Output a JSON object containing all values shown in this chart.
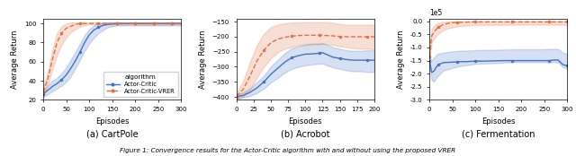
{
  "fig_width": 6.4,
  "fig_height": 1.74,
  "dpi": 100,
  "cartpole": {
    "xlim": [
      0,
      300
    ],
    "ylim": [
      20,
      105
    ],
    "xticks": [
      0,
      50,
      100,
      150,
      200,
      250,
      300
    ],
    "yticks": [
      20,
      40,
      60,
      80,
      100
    ],
    "xlabel": "Episodes",
    "ylabel": "Average Return",
    "title": "(a) CartPole",
    "ac_x": [
      0,
      10,
      20,
      30,
      40,
      50,
      60,
      70,
      80,
      90,
      100,
      110,
      120,
      130,
      140,
      150,
      160,
      170,
      180,
      190,
      200,
      210,
      220,
      230,
      240,
      250,
      260,
      270,
      280,
      290,
      300
    ],
    "ac_y": [
      26,
      30,
      34,
      37,
      41,
      46,
      53,
      61,
      70,
      80,
      88,
      93,
      96,
      98,
      99,
      99.5,
      100,
      100,
      100,
      100,
      100,
      100,
      100,
      100,
      100,
      100,
      100,
      100,
      100,
      100,
      100
    ],
    "ac_ylow": [
      23,
      26,
      29,
      32,
      35,
      39,
      45,
      53,
      62,
      71,
      79,
      85,
      90,
      93,
      96,
      97,
      98,
      98,
      98,
      98,
      98,
      98,
      98,
      98,
      98,
      98,
      98,
      98,
      98,
      98,
      98
    ],
    "ac_yhigh": [
      30,
      35,
      40,
      43,
      48,
      54,
      62,
      70,
      79,
      88,
      94,
      98,
      100,
      101,
      101,
      101,
      101,
      101,
      101,
      101,
      101,
      101,
      101,
      101,
      101,
      101,
      101,
      101,
      101,
      101,
      101
    ],
    "vrer_x": [
      0,
      10,
      20,
      30,
      40,
      50,
      60,
      70,
      80,
      90,
      100,
      110,
      120,
      130,
      140,
      150,
      160,
      170,
      180,
      190,
      200,
      210,
      220,
      230,
      240,
      250,
      260,
      270,
      280,
      290,
      300
    ],
    "vrer_y": [
      28,
      42,
      62,
      80,
      90,
      95,
      97,
      99,
      100,
      100,
      100,
      100,
      100,
      100,
      100,
      100,
      100,
      100,
      100,
      100,
      100,
      100,
      100,
      100,
      100,
      100,
      100,
      100,
      100,
      100,
      100
    ],
    "vrer_ylow": [
      25,
      36,
      52,
      67,
      78,
      85,
      91,
      94,
      97,
      98,
      99,
      99,
      99,
      99,
      99,
      99,
      99,
      99,
      99,
      99,
      99,
      99,
      99,
      99,
      99,
      99,
      99,
      99,
      99,
      99,
      99
    ],
    "vrer_yhigh": [
      32,
      50,
      72,
      90,
      97,
      100,
      101,
      101,
      101,
      101,
      101,
      101,
      101,
      101,
      101,
      101,
      101,
      101,
      101,
      101,
      101,
      101,
      101,
      101,
      101,
      101,
      101,
      101,
      101,
      101,
      101
    ]
  },
  "acrobot": {
    "xlim": [
      0,
      200
    ],
    "ylim": [
      -410,
      -140
    ],
    "xticks": [
      0,
      25,
      50,
      75,
      100,
      125,
      150,
      175,
      200
    ],
    "yticks": [
      -400,
      -350,
      -300,
      -250,
      -200,
      -150
    ],
    "xlabel": "Episodes",
    "ylabel": "Average Return",
    "title": "(b) Acrobot",
    "ac_x": [
      0,
      10,
      20,
      30,
      40,
      50,
      60,
      70,
      80,
      90,
      100,
      110,
      120,
      125,
      130,
      140,
      150,
      160,
      170,
      180,
      190,
      200
    ],
    "ac_y": [
      -400,
      -395,
      -385,
      -370,
      -350,
      -325,
      -305,
      -285,
      -270,
      -263,
      -258,
      -257,
      -255,
      -253,
      -258,
      -268,
      -272,
      -276,
      -278,
      -278,
      -278,
      -278
    ],
    "ac_ylow": [
      -405,
      -402,
      -397,
      -387,
      -372,
      -352,
      -337,
      -320,
      -307,
      -300,
      -295,
      -292,
      -290,
      -289,
      -294,
      -302,
      -307,
      -312,
      -315,
      -315,
      -317,
      -317
    ],
    "ac_yhigh": [
      -393,
      -385,
      -371,
      -351,
      -329,
      -299,
      -277,
      -255,
      -239,
      -232,
      -225,
      -223,
      -222,
      -221,
      -225,
      -235,
      -240,
      -245,
      -247,
      -247,
      -245,
      -245
    ],
    "vrer_x": [
      0,
      10,
      20,
      30,
      40,
      50,
      60,
      70,
      80,
      90,
      100,
      110,
      120,
      125,
      130,
      140,
      150,
      160,
      170,
      180,
      190,
      200
    ],
    "vrer_y": [
      -398,
      -375,
      -330,
      -280,
      -245,
      -220,
      -208,
      -202,
      -198,
      -196,
      -195,
      -195,
      -195,
      -195,
      -196,
      -197,
      -199,
      -200,
      -200,
      -200,
      -200,
      -200
    ],
    "vrer_ylow": [
      -408,
      -400,
      -375,
      -335,
      -300,
      -272,
      -252,
      -240,
      -234,
      -229,
      -227,
      -225,
      -225,
      -224,
      -225,
      -227,
      -232,
      -235,
      -238,
      -240,
      -240,
      -242
    ],
    "vrer_yhigh": [
      -388,
      -348,
      -283,
      -227,
      -190,
      -168,
      -160,
      -155,
      -153,
      -152,
      -152,
      -152,
      -151,
      -151,
      -152,
      -153,
      -158,
      -160,
      -160,
      -160,
      -160,
      -160
    ]
  },
  "fermentation": {
    "xlim": [
      0,
      300
    ],
    "ylim": [
      -3.0,
      0.1
    ],
    "xticks": [
      0,
      50,
      100,
      150,
      200,
      250,
      300
    ],
    "yticks": [
      0.0,
      -0.5,
      -1.0,
      -1.5,
      -2.0,
      -2.5,
      -3.0
    ],
    "ytick_labels": [
      "0.0",
      "-0.5",
      "-1.0",
      "-1.5",
      "-2.0",
      "-2.5",
      "-3.0"
    ],
    "xlabel": "Episodes",
    "ylabel": "Average Return",
    "title": "(c) Fermentation",
    "scale_label": "1e5",
    "ac_x": [
      0,
      5,
      10,
      15,
      20,
      30,
      40,
      50,
      60,
      70,
      80,
      90,
      100,
      120,
      140,
      160,
      180,
      200,
      220,
      240,
      260,
      270,
      280,
      290,
      300
    ],
    "ac_y": [
      -1.5,
      -1.95,
      -1.9,
      -1.75,
      -1.65,
      -1.58,
      -1.57,
      -1.56,
      -1.55,
      -1.54,
      -1.54,
      -1.53,
      -1.52,
      -1.52,
      -1.51,
      -1.5,
      -1.5,
      -1.5,
      -1.5,
      -1.5,
      -1.5,
      -1.48,
      -1.48,
      -1.65,
      -1.7
    ],
    "ac_ylow": [
      -1.65,
      -2.25,
      -2.3,
      -2.15,
      -2.05,
      -1.88,
      -1.83,
      -1.78,
      -1.73,
      -1.7,
      -1.68,
      -1.65,
      -1.62,
      -1.61,
      -1.6,
      -1.58,
      -1.56,
      -1.56,
      -1.56,
      -1.56,
      -1.56,
      -1.56,
      -1.57,
      -1.75,
      -1.82
    ],
    "ac_yhigh": [
      -1.3,
      -1.5,
      -1.38,
      -1.28,
      -1.23,
      -1.2,
      -1.17,
      -1.15,
      -1.13,
      -1.12,
      -1.12,
      -1.11,
      -1.1,
      -1.09,
      -1.09,
      -1.08,
      -1.07,
      -1.07,
      -1.07,
      -1.07,
      -1.06,
      -1.05,
      -1.06,
      -1.2,
      -1.25
    ],
    "vrer_x": [
      0,
      5,
      10,
      15,
      20,
      30,
      40,
      50,
      60,
      70,
      80,
      90,
      100,
      120,
      140,
      160,
      180,
      200,
      220,
      240,
      260,
      270,
      280,
      290,
      300
    ],
    "vrer_y": [
      -1.35,
      -0.55,
      -0.42,
      -0.3,
      -0.22,
      -0.12,
      -0.08,
      -0.05,
      -0.04,
      -0.03,
      -0.03,
      -0.02,
      -0.02,
      -0.02,
      -0.02,
      -0.02,
      -0.02,
      -0.02,
      -0.02,
      -0.02,
      -0.02,
      -0.02,
      -0.02,
      -0.02,
      -0.02
    ],
    "vrer_ylow": [
      -1.5,
      -0.8,
      -0.68,
      -0.55,
      -0.46,
      -0.33,
      -0.27,
      -0.23,
      -0.2,
      -0.18,
      -0.16,
      -0.15,
      -0.14,
      -0.14,
      -0.13,
      -0.13,
      -0.13,
      -0.13,
      -0.13,
      -0.13,
      -0.13,
      -0.13,
      -0.13,
      -0.13,
      -0.13
    ],
    "vrer_yhigh": [
      -1.15,
      -0.28,
      -0.18,
      -0.1,
      -0.06,
      -0.02,
      0.0,
      0.0,
      0.0,
      0.0,
      0.0,
      0.0,
      0.0,
      0.0,
      0.0,
      0.0,
      0.0,
      0.0,
      0.0,
      0.0,
      0.0,
      0.0,
      0.0,
      0.0,
      0.0
    ]
  },
  "ac_color": "#4472c4",
  "vrer_color": "#e07040",
  "ac_fill_alpha": 0.22,
  "vrer_fill_alpha": 0.22,
  "legend_title": "algorithm",
  "legend_ac_label": "Actor-Critic",
  "legend_vrer_label": "Actor-Critic-VRER",
  "caption": "Figure 1: Convergence results for the Actor-Critic algorithm with and without using the proposed VRER"
}
